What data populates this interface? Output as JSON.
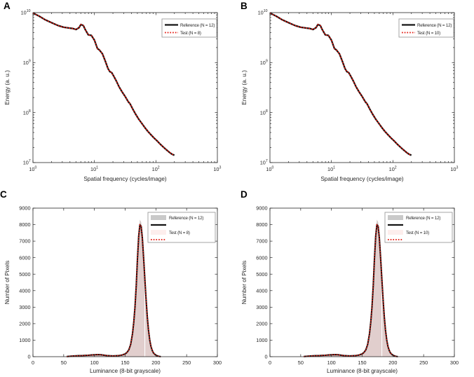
{
  "colors": {
    "background": "#ffffff",
    "axis": "#262626",
    "tick_label": "#262626",
    "legend_border": "#909090",
    "reference_line": "#141414",
    "test_line": "#e3170d",
    "reference_fill_plot": "#d2c7c5",
    "reference_fill_legend": "#c9c9c9",
    "test_fill_plot": "#ffdddd",
    "test_fill_legend": "#fdeeed",
    "fill_divider": "#ffffff"
  },
  "chart_data": {
    "layout": "2x2",
    "shared_series": {
      "energy_spectrum": {
        "x": [
          1.0,
          1.26,
          1.58,
          2.0,
          2.57,
          3.16,
          3.98,
          4.47,
          5.01,
          5.62,
          6.03,
          6.61,
          7.08,
          7.94,
          8.91,
          10.0,
          11.2,
          12.0,
          13.5,
          15.1,
          16.6,
          17.8,
          19.1,
          20.9,
          22.9,
          25.1,
          28.2,
          31.6,
          35.5,
          38.0,
          41.7,
          46.8,
          52.5,
          58.9,
          66.1,
          74.1,
          83.2,
          93.3,
          105,
          117,
          132,
          148,
          166,
          182,
          200
        ],
        "y": [
          9800000000.0,
          8500000000.0,
          7200000000.0,
          6300000000.0,
          5500000000.0,
          5100000000.0,
          4900000000.0,
          4800000000.0,
          4600000000.0,
          5000000000.0,
          5800000000.0,
          5500000000.0,
          4600000000.0,
          3600000000.0,
          3500000000.0,
          2800000000.0,
          1900000000.0,
          1800000000.0,
          1500000000.0,
          1050000000.0,
          760000000.0,
          660000000.0,
          630000000.0,
          520000000.0,
          420000000.0,
          330000000.0,
          260000000.0,
          210000000.0,
          165000000.0,
          150000000.0,
          120000000.0,
          93000000.0,
          74000000.0,
          61000000.0,
          50000000.0,
          42000000.0,
          36000000.0,
          31000000.0,
          27000000.0,
          23500000.0,
          20500000.0,
          18000000.0,
          16000000.0,
          14800000.0,
          14000000.0
        ]
      },
      "luminance_hist_reference": {
        "x": [
          55,
          60,
          65,
          70,
          75,
          80,
          85,
          90,
          95,
          100,
          105,
          110,
          115,
          120,
          125,
          130,
          135,
          140,
          145,
          150,
          153,
          156,
          159,
          162,
          164,
          166,
          168,
          170,
          172,
          174,
          176,
          178,
          180,
          182,
          184,
          186,
          188,
          190,
          192,
          194,
          196,
          199,
          202,
          205,
          208
        ],
        "y": [
          10,
          25,
          40,
          50,
          60,
          65,
          75,
          85,
          100,
          115,
          125,
          118,
          95,
          70,
          55,
          48,
          55,
          70,
          100,
          172,
          265,
          430,
          770,
          1430,
          2150,
          3080,
          4400,
          6050,
          7500,
          8300,
          8150,
          7400,
          6150,
          4800,
          3580,
          2460,
          1640,
          1020,
          635,
          390,
          235,
          122,
          56,
          20,
          5
        ]
      },
      "luminance_hist_test": {
        "x": [
          55,
          60,
          65,
          70,
          75,
          80,
          85,
          90,
          95,
          100,
          105,
          110,
          115,
          120,
          125,
          130,
          135,
          140,
          145,
          150,
          153,
          156,
          159,
          162,
          164,
          166,
          168,
          170,
          172,
          174,
          176,
          178,
          180,
          182,
          184,
          186,
          188,
          190,
          192,
          194,
          196,
          199,
          202,
          205,
          208
        ],
        "y": [
          10,
          25,
          40,
          50,
          60,
          65,
          75,
          85,
          100,
          115,
          125,
          118,
          95,
          70,
          55,
          48,
          55,
          70,
          100,
          170,
          260,
          420,
          750,
          1400,
          2100,
          3000,
          4300,
          5900,
          7300,
          8000,
          7900,
          7200,
          6000,
          4700,
          3500,
          2400,
          1600,
          1000,
          620,
          380,
          230,
          120,
          55,
          20,
          5
        ]
      }
    },
    "panels": [
      {
        "panel_label": "A",
        "type": "line",
        "xscale": "log",
        "yscale": "log",
        "xlabel": "Spatial frequency (cycles/image)",
        "ylabel": "Energy (a. u.)",
        "xlim": [
          1,
          1000
        ],
        "ylim": [
          10000000.0,
          10000000000.0
        ],
        "xtick_exponents": [
          0,
          1,
          2,
          3
        ],
        "ytick_exponents": [
          7,
          8,
          9,
          10
        ],
        "series_key": "energy_spectrum",
        "legend": [
          {
            "label": "Reference (N = 12)",
            "swatch": "solid-line",
            "color_key": "reference_line"
          },
          {
            "label": "Test (N = 8)",
            "swatch": "dotted-line",
            "color_key": "test_line"
          }
        ]
      },
      {
        "panel_label": "B",
        "type": "line",
        "xscale": "log",
        "yscale": "log",
        "xlabel": "Spatial frequency (cycles/image)",
        "ylabel": "Energy (a. u.)",
        "xlim": [
          1,
          1000
        ],
        "ylim": [
          10000000.0,
          10000000000.0
        ],
        "xtick_exponents": [
          0,
          1,
          2,
          3
        ],
        "ytick_exponents": [
          7,
          8,
          9,
          10
        ],
        "series_key": "energy_spectrum",
        "legend": [
          {
            "label": "Reference (N = 12)",
            "swatch": "solid-line",
            "color_key": "reference_line"
          },
          {
            "label": "Test (N = 10)",
            "swatch": "dotted-line",
            "color_key": "test_line"
          }
        ]
      },
      {
        "panel_label": "C",
        "type": "area-line-histogram",
        "xscale": "linear",
        "yscale": "linear",
        "xlabel": "Luminance (8-bit grayscale)",
        "ylabel": "Number of Pixels",
        "xlim": [
          0,
          300
        ],
        "ylim": [
          0,
          9000
        ],
        "xticks": [
          0,
          50,
          100,
          150,
          200,
          250,
          300
        ],
        "yticks": [
          0,
          1000,
          2000,
          3000,
          4000,
          5000,
          6000,
          7000,
          8000,
          9000
        ],
        "ref_series_key": "luminance_hist_reference",
        "test_series_key": "luminance_hist_test",
        "divider": {
          "x": 182,
          "top": 4700
        },
        "legend": [
          {
            "label": "Reference (N = 12)",
            "swatch": "fill",
            "color_key": "reference_fill_legend"
          },
          {
            "label": "",
            "swatch": "solid-line",
            "color_key": "reference_line"
          },
          {
            "label": "Test (N = 8)",
            "swatch": "fill",
            "color_key": "test_fill_legend"
          },
          {
            "label": "",
            "swatch": "dotted-line",
            "color_key": "test_line"
          }
        ]
      },
      {
        "panel_label": "D",
        "type": "area-line-histogram",
        "xscale": "linear",
        "yscale": "linear",
        "xlabel": "Luminance (8-bit grayscale)",
        "ylabel": "Number of Pixels",
        "xlim": [
          0,
          300
        ],
        "ylim": [
          0,
          9000
        ],
        "xticks": [
          0,
          50,
          100,
          150,
          200,
          250,
          300
        ],
        "yticks": [
          0,
          1000,
          2000,
          3000,
          4000,
          5000,
          6000,
          7000,
          8000,
          9000
        ],
        "ref_series_key": "luminance_hist_reference",
        "test_series_key": "luminance_hist_test",
        "divider": {
          "x": 182,
          "top": 4700
        },
        "legend": [
          {
            "label": "Reference (N = 12)",
            "swatch": "fill",
            "color_key": "reference_fill_legend"
          },
          {
            "label": "",
            "swatch": "solid-line",
            "color_key": "reference_line"
          },
          {
            "label": "Test (N = 10)",
            "swatch": "fill",
            "color_key": "test_fill_legend"
          },
          {
            "label": "",
            "swatch": "dotted-line",
            "color_key": "test_line"
          }
        ]
      }
    ]
  }
}
